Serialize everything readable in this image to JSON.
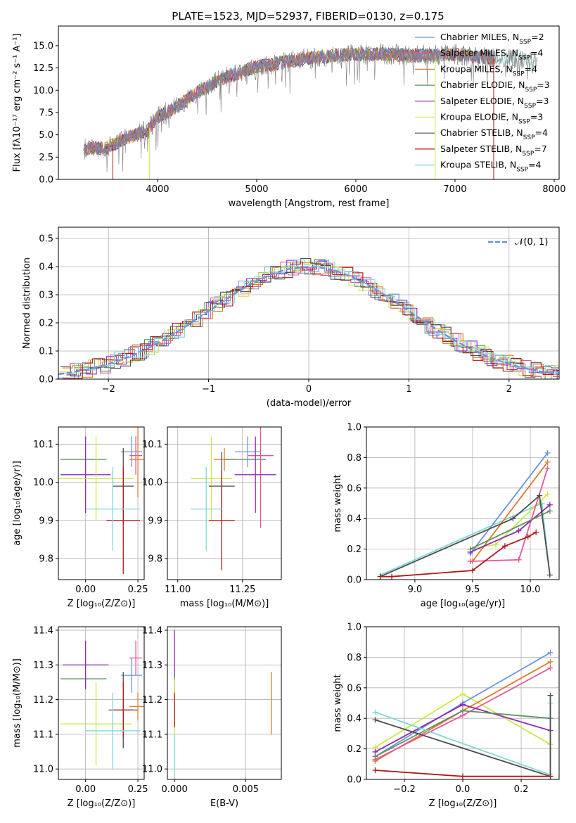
{
  "title": "PLATE=1523, MJD=52937, FIBERID=0130, z=0.175",
  "colors": {
    "chabrier_miles": "#6c93dc",
    "salpeter_miles": "#e8559b",
    "kroupa_miles": "#e07b24",
    "chabrier_elodie": "#5e8f5e",
    "salpeter_elodie": "#8c2bb0",
    "kroupa_elodie": "#c9ea4a",
    "chabrier_stelib": "#4d4d4d",
    "salpeter_stelib": "#b01818",
    "kroupa_stelib": "#7fd8d8",
    "data": "#808080",
    "normal": "#6c93dc"
  },
  "chart_data": [
    {
      "type": "line",
      "panel": "spectrum",
      "xlabel": "wavelength [Angstrom, rest frame]",
      "ylabel": "Flux [fλ10⁻¹⁷ erg cm⁻² s⁻¹ A⁻¹]",
      "xlim": [
        3000,
        8050
      ],
      "ylim": [
        0,
        17.2
      ],
      "xticks": [
        "4000",
        "5000",
        "6000",
        "7000",
        "8000"
      ],
      "yticks": [
        "0.0",
        "2.5",
        "5.0",
        "7.5",
        "10.0",
        "12.5",
        "15.0"
      ],
      "legend": [
        "Chabrier MILES, N_SSP=2",
        "Salpeter MILES, N_SSP=4",
        "Kroupa MILES, N_SSP=4",
        "Chabrier ELODIE, N_SSP=3",
        "Salpeter ELODIE, N_SSP=3",
        "Kroupa ELODIE, N_SSP=3",
        "Chabrier STELIB, N_SSP=4",
        "Salpeter STELIB, N_SSP=7",
        "Kroupa STELIB, N_SSP=4"
      ],
      "legend_main": [
        "Chabrier MILES, N",
        "Salpeter MILES, N",
        "Kroupa MILES, N",
        "Chabrier ELODIE, N",
        "Salpeter ELODIE, N",
        "Kroupa ELODIE, N",
        "Chabrier STELIB, N",
        "Salpeter STELIB, N",
        "Kroupa STELIB, N"
      ],
      "legend_n": [
        "=2",
        "=4",
        "=4",
        "=3",
        "=3",
        "=3",
        "=4",
        "=7",
        "=4"
      ],
      "legend_sub": "SSP",
      "legend_placement": "upper-right",
      "continuum": [
        [
          3250,
          3.4
        ],
        [
          3500,
          3.6
        ],
        [
          3700,
          4.7
        ],
        [
          3900,
          5.5
        ],
        [
          4000,
          7.0
        ],
        [
          4200,
          8.2
        ],
        [
          4400,
          9.8
        ],
        [
          4700,
          11.5
        ],
        [
          5000,
          12.6
        ],
        [
          5400,
          13.4
        ],
        [
          5800,
          13.9
        ],
        [
          6200,
          14.1
        ],
        [
          6600,
          13.9
        ],
        [
          7000,
          14.0
        ],
        [
          7400,
          13.6
        ],
        [
          7800,
          13.3
        ]
      ]
    },
    {
      "type": "line",
      "panel": "residuals",
      "xlabel": "(data-model)/error",
      "ylabel": "Normed distribution",
      "xlim": [
        -2.5,
        2.5
      ],
      "ylim": [
        0,
        0.54
      ],
      "xticks": [
        "−2",
        "−1",
        "0",
        "1",
        "2"
      ],
      "yticks": [
        "0.0",
        "0.1",
        "0.2",
        "0.3",
        "0.4",
        "0.5"
      ],
      "legend": [
        "𝒩(0, 1)"
      ],
      "legend_placement": "upper-right",
      "bin_width": 0.1
    },
    {
      "type": "scatter",
      "panel": "age_vs_Z",
      "xlabel": "Z [log₁₀(Z/Z⊙)]",
      "ylabel": "age  [log₁₀(age/yr)]",
      "xlim": [
        -0.13,
        0.28
      ],
      "ylim": [
        9.745,
        10.145
      ],
      "xticks": [
        "0.00",
        "0.25"
      ],
      "yticks": [
        "9.8",
        "9.9",
        "10.0",
        "10.1"
      ],
      "points": [
        {
          "series": "chabrier_miles",
          "x": 0.22,
          "y": 10.08,
          "xerr": 0.05,
          "yerr": 0.04
        },
        {
          "series": "salpeter_miles",
          "x": 0.24,
          "y": 10.07,
          "xerr": 0.03,
          "yerr": 0.05
        },
        {
          "series": "kroupa_miles",
          "x": 0.25,
          "y": 10.06,
          "xerr": 0.04,
          "yerr": 0.1
        },
        {
          "series": "chabrier_elodie",
          "x": -0.01,
          "y": 10.06,
          "xerr": 0.11,
          "yerr": 0.0
        },
        {
          "series": "salpeter_elodie",
          "x": 0.0,
          "y": 10.02,
          "xerr": 0.12,
          "yerr": 0.1
        },
        {
          "series": "kroupa_elodie",
          "x": 0.05,
          "y": 10.01,
          "xerr": 0.18,
          "yerr": 0.11
        },
        {
          "series": "chabrier_stelib",
          "x": 0.18,
          "y": 9.99,
          "xerr": 0.05,
          "yerr": 0.1
        },
        {
          "series": "salpeter_stelib",
          "x": 0.18,
          "y": 9.9,
          "xerr": 0.08,
          "yerr": 0.14
        },
        {
          "series": "kroupa_stelib",
          "x": 0.13,
          "y": 9.93,
          "xerr": 0.13,
          "yerr": 0.11
        }
      ]
    },
    {
      "type": "scatter",
      "panel": "age_vs_mass",
      "xlabel": "mass [log₁₀(M/M⊙)]",
      "xlim": [
        10.96,
        11.4
      ],
      "ylim": [
        9.745,
        10.145
      ],
      "xticks": [
        "11.00",
        "11.25"
      ],
      "yticks": [
        "9.8",
        "9.9",
        "10.0",
        "10.1"
      ],
      "points": [
        {
          "series": "chabrier_miles",
          "x": 11.27,
          "y": 10.08,
          "xerr": 0.05,
          "yerr": 0.04
        },
        {
          "series": "salpeter_miles",
          "x": 11.32,
          "y": 10.07,
          "xerr": 0.05,
          "yerr": 0.19
        },
        {
          "series": "kroupa_miles",
          "x": 11.18,
          "y": 10.06,
          "xerr": 0.04,
          "yerr": 0.03
        },
        {
          "series": "chabrier_elodie",
          "x": 11.26,
          "y": 10.06,
          "xerr": 0.08,
          "yerr": 0.0
        },
        {
          "series": "salpeter_elodie",
          "x": 11.3,
          "y": 10.02,
          "xerr": 0.08,
          "yerr": 0.1
        },
        {
          "series": "kroupa_elodie",
          "x": 11.13,
          "y": 10.01,
          "xerr": 0.08,
          "yerr": 0.11
        },
        {
          "series": "chabrier_stelib",
          "x": 11.17,
          "y": 9.99,
          "xerr": 0.05,
          "yerr": 0.09
        },
        {
          "series": "salpeter_stelib",
          "x": 11.17,
          "y": 9.9,
          "xerr": 0.05,
          "yerr": 0.13
        },
        {
          "series": "kroupa_stelib",
          "x": 11.11,
          "y": 9.93,
          "xerr": 0.06,
          "yerr": 0.11
        }
      ]
    },
    {
      "type": "line",
      "panel": "weight_vs_age",
      "xlabel": "age  [log₁₀(age/yr)]",
      "ylabel": "mass weight",
      "xlim": [
        8.58,
        10.25
      ],
      "ylim": [
        0,
        1.0
      ],
      "xticks": [
        "9.0",
        "9.5",
        "10.0"
      ],
      "yticks": [
        "0.0",
        "0.2",
        "0.4",
        "0.6",
        "0.8",
        "1.0"
      ],
      "series": [
        {
          "series": "kroupa_stelib",
          "x": [
            8.7,
            10.1,
            10.17
          ],
          "y": [
            0.03,
            0.5,
            0.03
          ]
        },
        {
          "series": "kroupa_elodie",
          "x": [
            9.48,
            9.7,
            10.15
          ],
          "y": [
            0.2,
            0.23,
            0.56
          ]
        },
        {
          "series": "chabrier_miles",
          "x": [
            9.48,
            10.15
          ],
          "y": [
            0.17,
            0.83
          ]
        },
        {
          "series": "kroupa_miles",
          "x": [
            9.48,
            9.5,
            10.15
          ],
          "y": [
            0.12,
            0.12,
            0.77
          ]
        },
        {
          "series": "salpeter_miles",
          "x": [
            9.48,
            9.9,
            10.15
          ],
          "y": [
            0.12,
            0.13,
            0.73
          ]
        },
        {
          "series": "salpeter_elodie",
          "x": [
            9.48,
            9.9,
            10.17
          ],
          "y": [
            0.18,
            0.32,
            0.49
          ]
        },
        {
          "series": "chabrier_elodie",
          "x": [
            9.48,
            10.17
          ],
          "y": [
            0.2,
            0.45
          ]
        },
        {
          "series": "chabrier_stelib",
          "x": [
            8.7,
            9.85,
            10.08,
            10.17
          ],
          "y": [
            0.02,
            0.4,
            0.55,
            0.03
          ]
        },
        {
          "series": "salpeter_stelib",
          "x": [
            8.7,
            8.8,
            9.5,
            9.78,
            9.98,
            10.05
          ],
          "y": [
            0.02,
            0.02,
            0.06,
            0.22,
            0.28,
            0.31
          ]
        }
      ]
    },
    {
      "type": "scatter",
      "panel": "mass_vs_Z",
      "xlabel": "Z [log₁₀(Z/Z⊙)]",
      "ylabel": "mass [log₁₀(M/M⊙)]",
      "xlim": [
        -0.13,
        0.28
      ],
      "ylim": [
        10.97,
        11.41
      ],
      "xticks": [
        "0.00",
        "0.25"
      ],
      "yticks": [
        "11.0",
        "11.1",
        "11.2",
        "11.3",
        "11.4"
      ],
      "points": [
        {
          "series": "chabrier_miles",
          "x": 0.22,
          "y": 11.27,
          "xerr": 0.05,
          "yerr": 0.05
        },
        {
          "series": "salpeter_miles",
          "x": 0.24,
          "y": 11.32,
          "xerr": 0.03,
          "yerr": 0.05
        },
        {
          "series": "kroupa_miles",
          "x": 0.25,
          "y": 11.18,
          "xerr": 0.04,
          "yerr": 0.04
        },
        {
          "series": "chabrier_elodie",
          "x": -0.01,
          "y": 11.26,
          "xerr": 0.11,
          "yerr": 0.0
        },
        {
          "series": "salpeter_elodie",
          "x": 0.0,
          "y": 11.3,
          "xerr": 0.11,
          "yerr": 0.07
        },
        {
          "series": "kroupa_elodie",
          "x": 0.05,
          "y": 11.13,
          "xerr": 0.17,
          "yerr": 0.12
        },
        {
          "series": "chabrier_stelib",
          "x": 0.18,
          "y": 11.17,
          "xerr": 0.07,
          "yerr": 0.11
        },
        {
          "series": "salpeter_stelib",
          "x": 0.18,
          "y": 11.17,
          "xerr": 0.05,
          "yerr": 0.08
        },
        {
          "series": "kroupa_stelib",
          "x": 0.13,
          "y": 11.11,
          "xerr": 0.13,
          "yerr": 0.11
        }
      ]
    },
    {
      "type": "scatter",
      "panel": "mass_vs_ebv",
      "xlabel": "E(B-V)",
      "xlim": [
        -0.0005,
        0.0075
      ],
      "ylim": [
        10.97,
        11.41
      ],
      "xticks": [
        "0.000",
        "0.005"
      ],
      "yticks": [
        "11.0",
        "11.1",
        "11.2",
        "11.3",
        "11.4"
      ],
      "points": [
        {
          "series": "salpeter_elodie",
          "x": 0.0,
          "y": 11.31,
          "xerr": 0.0,
          "yerr": 0.09
        },
        {
          "series": "chabrier_elodie",
          "x": 0.0,
          "y": 11.26,
          "xerr": 0.0,
          "yerr": 0.01
        },
        {
          "series": "kroupa_elodie",
          "x": 0.0,
          "y": 11.14,
          "xerr": 0.0,
          "yerr": 0.12
        },
        {
          "series": "salpeter_stelib",
          "x": 0.0,
          "y": 11.17,
          "xerr": 0.0,
          "yerr": 0.05
        },
        {
          "series": "kroupa_stelib",
          "x": 0.0,
          "y": 11.04,
          "xerr": 0.0,
          "yerr": 0.06
        },
        {
          "series": "kroupa_miles",
          "x": 0.0068,
          "y": 11.19,
          "xerr": 0.0,
          "yerr": 0.09
        }
      ]
    },
    {
      "type": "line",
      "panel": "weight_vs_Z",
      "xlabel": "Z [log₁₀(Z/Z⊙)]",
      "ylabel": "mass weight",
      "xlim": [
        -0.33,
        0.33
      ],
      "ylim": [
        0,
        1.0
      ],
      "xticks": [
        "−0.2",
        "0.0",
        "0.2"
      ],
      "yticks": [
        "0.0",
        "0.2",
        "0.4",
        "0.6",
        "0.8",
        "1.0"
      ],
      "series": [
        {
          "series": "kroupa_elodie",
          "x": [
            -0.3,
            0.0,
            0.3
          ],
          "y": [
            0.21,
            0.56,
            0.23
          ]
        },
        {
          "series": "chabrier_miles",
          "x": [
            -0.3,
            0.0,
            0.3
          ],
          "y": [
            0.15,
            0.5,
            0.83
          ]
        },
        {
          "series": "kroupa_miles",
          "x": [
            -0.3,
            0.0,
            0.3
          ],
          "y": [
            0.12,
            0.45,
            0.77
          ]
        },
        {
          "series": "salpeter_miles",
          "x": [
            -0.3,
            0.0,
            0.3
          ],
          "y": [
            0.13,
            0.42,
            0.73
          ]
        },
        {
          "series": "salpeter_elodie",
          "x": [
            -0.3,
            0.0,
            0.3
          ],
          "y": [
            0.18,
            0.49,
            0.32
          ]
        },
        {
          "series": "chabrier_elodie",
          "x": [
            -0.3,
            0.0,
            0.3
          ],
          "y": [
            0.15,
            0.45,
            0.4
          ]
        },
        {
          "series": "kroupa_stelib",
          "x": [
            -0.3,
            0.3,
            0.3
          ],
          "y": [
            0.44,
            0.03,
            0.5
          ]
        },
        {
          "series": "chabrier_stelib",
          "x": [
            -0.3,
            0.3,
            0.3
          ],
          "y": [
            0.39,
            0.02,
            0.55
          ]
        },
        {
          "series": "salpeter_stelib",
          "x": [
            -0.3,
            0.0,
            0.3
          ],
          "y": [
            0.06,
            0.02,
            0.02
          ]
        }
      ]
    }
  ]
}
